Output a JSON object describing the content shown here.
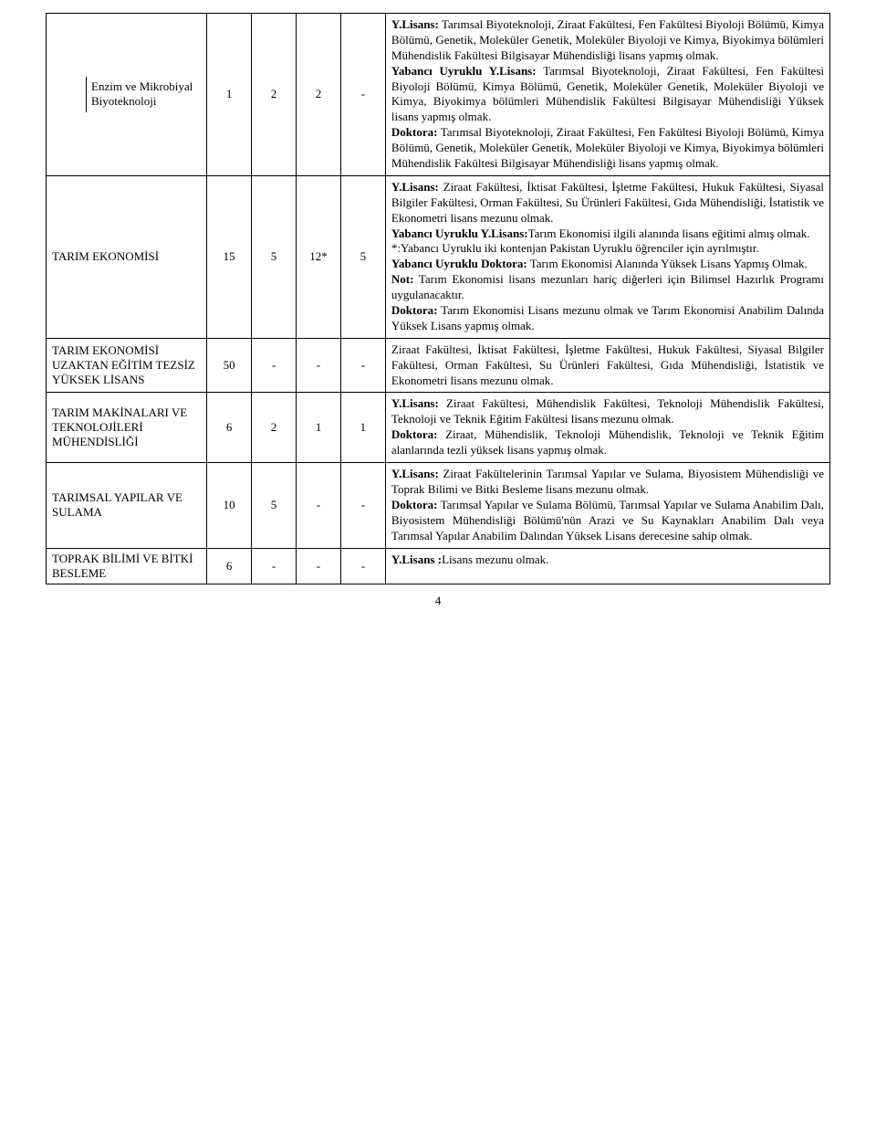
{
  "table": {
    "columns_width_pct": [
      20.5,
      5.7,
      5.7,
      5.7,
      5.7,
      56.7
    ],
    "rows": [
      {
        "label": "Enzim ve Mikrobiyal Biyoteknoloji",
        "label_split": true,
        "c1": "1",
        "c2": "2",
        "c3": "2",
        "c4": "-",
        "desc_html": "<b>Y.Lisans:</b> Tarımsal Biyoteknoloji, Ziraat Fakültesi, Fen Fakültesi Biyoloji Bölümü, Kimya Bölümü, Genetik, Moleküler Genetik, Moleküler Biyoloji ve Kimya, Biyokimya bölümleri Mühendislik Fakültesi Bilgisayar Mühendisliği lisans yapmış olmak.<br><b>Yabancı Uyruklu Y.Lisans:</b> Tarımsal Biyoteknoloji, Ziraat Fakültesi, Fen Fakültesi Biyoloji Bölümü, Kimya Bölümü, Genetik, Moleküler Genetik, Moleküler Biyoloji ve Kimya, Biyokimya bölümleri Mühendislik Fakültesi Bilgisayar Mühendisliği Yüksek lisans yapmış olmak.<br><b>Doktora:</b> Tarımsal Biyoteknoloji, Ziraat Fakültesi, Fen Fakültesi Biyoloji Bölümü, Kimya Bölümü, Genetik, Moleküler Genetik, Moleküler Biyoloji ve Kimya, Biyokimya bölümleri Mühendislik Fakültesi Bilgisayar Mühendisliği lisans yapmış olmak."
      },
      {
        "label": "TARIM EKONOMİSİ",
        "label_split": false,
        "c1": "15",
        "c2": "5",
        "c3": "12*",
        "c4": "5",
        "desc_html": "<b>Y.Lisans:</b> Ziraat Fakültesi, İktisat Fakültesi, İşletme Fakültesi, Hukuk Fakültesi, Siyasal Bilgiler Fakültesi, Orman Fakültesi, Su Ürünleri Fakültesi, Gıda Mühendisliği, İstatistik ve Ekonometri lisans mezunu olmak.<br><b>Yabancı Uyruklu Y.Lisans:</b>Tarım Ekonomisi ilgili alanında lisans eğitimi almış olmak.<br>*:Yabancı Uyruklu iki kontenjan Pakistan Uyruklu öğrenciler için ayrılmıştır.<br><b>Yabancı Uyruklu Doktora:</b> Tarım Ekonomisi Alanında Yüksek Lisans Yapmış Olmak.<br><b>Not:</b> Tarım Ekonomisi lisans mezunları hariç diğerleri için Bilimsel Hazırlık Programı uygulanacaktır.<br><b>Doktora:</b> Tarım Ekonomisi Lisans mezunu olmak ve Tarım Ekonomisi Anabilim Dalında Yüksek Lisans yapmış olmak."
      },
      {
        "label": "TARIM EKONOMİSİ UZAKTAN EĞİTİM TEZSİZ YÜKSEK LİSANS",
        "label_split": false,
        "c1": "50",
        "c2": "-",
        "c3": "-",
        "c4": "-",
        "desc_html": "Ziraat Fakültesi, İktisat Fakültesi, İşletme Fakültesi, Hukuk Fakültesi, Siyasal Bilgiler Fakültesi, Orman Fakültesi, Su Ürünleri Fakültesi, Gıda Mühendisliği, İstatistik ve Ekonometri lisans mezunu olmak."
      },
      {
        "label": "TARIM MAKİNALARI VE TEKNOLOJİLERİ MÜHENDİSLİĞİ",
        "label_split": false,
        "c1": "6",
        "c2": "2",
        "c3": "1",
        "c4": "1",
        "desc_html": "<b>Y.Lisans:</b> Ziraat Fakültesi, Mühendislik Fakültesi, Teknoloji Mühendislik Fakültesi, Teknoloji ve Teknik Eğitim Fakültesi lisans mezunu olmak.<br><b>Doktora:</b> Ziraat, Mühendislik, Teknoloji Mühendislik, Teknoloji ve Teknik Eğitim alanlarında tezli yüksek lisans yapmış olmak."
      },
      {
        "label": "TARIMSAL YAPILAR VE SULAMA",
        "label_split": false,
        "c1": "10",
        "c2": "5",
        "c3": "-",
        "c4": "-",
        "desc_html": "<b>Y.Lisans:</b> Ziraat Fakültelerinin Tarımsal Yapılar ve Sulama, Biyosistem Mühendisliği ve Toprak Bilimi ve Bitki Besleme lisans mezunu olmak.<br><b>Doktora:</b> Tarımsal Yapılar ve Sulama Bölümü, Tarımsal Yapılar ve Sulama Anabilim Dalı, Biyosistem Mühendisliği Bölümü'nün Arazi ve Su Kaynakları Anabilim Dalı veya Tarımsal Yapılar Anabilim Dalından Yüksek Lisans derecesine sahip olmak."
      },
      {
        "label": "TOPRAK BİLİMİ VE BİTKİ BESLEME",
        "label_split": false,
        "c1": "6",
        "c2": "-",
        "c3": "-",
        "c4": "-",
        "desc_html": "<b>Y.Lisans :</b>Lisans mezunu olmak."
      }
    ]
  },
  "page_number": "4"
}
